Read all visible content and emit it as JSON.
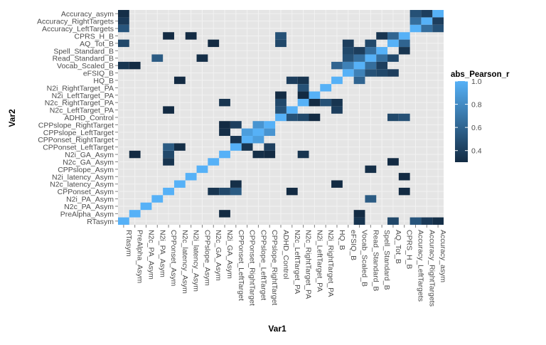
{
  "chart_data": {
    "type": "heatmap",
    "title": "",
    "xlabel": "Var1",
    "ylabel": "Var2",
    "legend": {
      "title": "abs_Pearson_r",
      "ticks": [
        0.4,
        0.6,
        0.8,
        1.0
      ],
      "tick_labels": [
        "0.4",
        "0.6",
        "0.8",
        "1.0"
      ],
      "position": "right",
      "range": [
        0.3,
        1.0
      ]
    },
    "grid": true,
    "colors": {
      "panel": "#e5e5e5",
      "grid": "#f2f2f2",
      "low": "#132b43",
      "high": "#56b1f7",
      "axis_text": "#4d4d4d"
    },
    "variables": [
      "RTasym",
      "PreAlpha_Asym",
      "N2c_PA_Asym",
      "N2i_PA_Asym",
      "CPPonset_Asym",
      "N2c_latency_Asym",
      "N2i_latency_Asym",
      "CPPslope_Asym",
      "N2c_GA_Asym",
      "N2i_GA_Asym",
      "CPPonset_LeftTarget",
      "CPPonset_RightTarget",
      "CPPslope_LeftTarget",
      "CPPslope_RightTarget",
      "ADHD_Control",
      "N2c_LeftTarget_PA",
      "N2c_RightTarget_PA",
      "N2i_LeftTarget_PA",
      "N2i_RightTarget_PA",
      "HQ_B",
      "eFSIQ_B",
      "Vocab_Scaled_B",
      "Read_Standard_B",
      "Spell_Standard_B",
      "AQ_Tot_B",
      "CPRS_H_B",
      "Accuracy_LeftTargets",
      "Accuracy_RightTargets",
      "Accuracy_asym"
    ],
    "cells": [
      [
        0,
        0,
        1.0
      ],
      [
        1,
        1,
        1.0
      ],
      [
        2,
        2,
        1.0
      ],
      [
        3,
        3,
        1.0
      ],
      [
        4,
        4,
        1.0
      ],
      [
        5,
        5,
        1.0
      ],
      [
        6,
        6,
        1.0
      ],
      [
        7,
        7,
        1.0
      ],
      [
        8,
        8,
        1.0
      ],
      [
        9,
        9,
        1.0
      ],
      [
        10,
        10,
        1.0
      ],
      [
        11,
        11,
        1.0
      ],
      [
        12,
        12,
        1.0
      ],
      [
        13,
        13,
        1.0
      ],
      [
        14,
        14,
        1.0
      ],
      [
        15,
        15,
        1.0
      ],
      [
        16,
        16,
        1.0
      ],
      [
        17,
        17,
        1.0
      ],
      [
        18,
        18,
        1.0
      ],
      [
        19,
        19,
        1.0
      ],
      [
        20,
        20,
        1.0
      ],
      [
        21,
        21,
        1.0
      ],
      [
        22,
        22,
        1.0
      ],
      [
        23,
        23,
        1.0
      ],
      [
        24,
        24,
        1.0
      ],
      [
        25,
        25,
        1.0
      ],
      [
        26,
        26,
        1.0
      ],
      [
        27,
        27,
        1.0
      ],
      [
        28,
        28,
        1.0
      ],
      [
        0,
        27,
        0.38
      ],
      [
        27,
        0,
        0.38
      ],
      [
        0,
        26,
        0.52
      ],
      [
        26,
        0,
        0.52
      ],
      [
        0,
        28,
        0.32
      ],
      [
        28,
        0,
        0.32
      ],
      [
        0,
        24,
        0.45
      ],
      [
        24,
        0,
        0.45
      ],
      [
        0,
        21,
        0.35
      ],
      [
        21,
        0,
        0.35
      ],
      [
        3,
        22,
        0.55
      ],
      [
        22,
        3,
        0.55
      ],
      [
        5,
        10,
        0.32
      ],
      [
        10,
        5,
        0.32
      ],
      [
        4,
        15,
        0.3
      ],
      [
        15,
        4,
        0.3
      ],
      [
        1,
        21,
        0.3
      ],
      [
        21,
        1,
        0.3
      ],
      [
        1,
        9,
        0.3
      ],
      [
        9,
        1,
        0.3
      ],
      [
        4,
        9,
        0.45
      ],
      [
        9,
        4,
        0.45
      ],
      [
        5,
        19,
        0.28
      ],
      [
        19,
        5,
        0.28
      ],
      [
        4,
        10,
        0.55
      ],
      [
        10,
        4,
        0.55
      ],
      [
        4,
        8,
        0.35
      ],
      [
        8,
        4,
        0.35
      ],
      [
        4,
        25,
        0.3
      ],
      [
        25,
        4,
        0.3
      ],
      [
        6,
        25,
        0.3
      ],
      [
        25,
        6,
        0.3
      ],
      [
        7,
        22,
        0.32
      ],
      [
        22,
        7,
        0.32
      ],
      [
        8,
        24,
        0.3
      ],
      [
        24,
        8,
        0.3
      ],
      [
        10,
        13,
        0.4
      ],
      [
        13,
        10,
        0.4
      ],
      [
        12,
        9,
        0.32
      ],
      [
        9,
        12,
        0.32
      ],
      [
        13,
        9,
        0.3
      ],
      [
        9,
        13,
        0.3
      ],
      [
        16,
        9,
        0.35
      ],
      [
        9,
        16,
        0.35
      ],
      [
        14,
        15,
        0.5
      ],
      [
        15,
        14,
        0.5
      ],
      [
        14,
        16,
        0.45
      ],
      [
        16,
        14,
        0.45
      ],
      [
        14,
        17,
        0.3
      ],
      [
        17,
        14,
        0.3
      ],
      [
        15,
        19,
        0.4
      ],
      [
        19,
        15,
        0.4
      ],
      [
        16,
        19,
        0.35
      ],
      [
        19,
        16,
        0.35
      ],
      [
        16,
        17,
        0.3
      ],
      [
        17,
        16,
        0.3
      ],
      [
        16,
        18,
        0.5
      ],
      [
        18,
        16,
        0.5
      ],
      [
        12,
        13,
        0.85
      ],
      [
        13,
        12,
        0.85
      ],
      [
        11,
        12,
        0.9
      ],
      [
        12,
        11,
        0.9
      ],
      [
        10,
        11,
        0.35
      ],
      [
        11,
        10,
        0.35
      ],
      [
        19,
        21,
        0.6
      ],
      [
        21,
        19,
        0.6
      ],
      [
        20,
        21,
        0.75
      ],
      [
        21,
        20,
        0.75
      ],
      [
        20,
        22,
        0.5
      ],
      [
        22,
        20,
        0.5
      ],
      [
        21,
        22,
        0.65
      ],
      [
        22,
        21,
        0.65
      ],
      [
        22,
        23,
        0.65
      ],
      [
        23,
        22,
        0.65
      ],
      [
        20,
        23,
        0.45
      ],
      [
        23,
        20,
        0.45
      ],
      [
        21,
        23,
        0.4
      ],
      [
        23,
        21,
        0.4
      ],
      [
        20,
        24,
        0.4
      ],
      [
        24,
        20,
        0.4
      ],
      [
        22,
        24,
        0.45
      ],
      [
        24,
        22,
        0.45
      ],
      [
        24,
        25,
        0.6
      ],
      [
        25,
        24,
        0.6
      ],
      [
        23,
        25,
        0.35
      ],
      [
        25,
        23,
        0.35
      ],
      [
        26,
        27,
        0.65
      ],
      [
        27,
        26,
        0.65
      ],
      [
        27,
        28,
        0.4
      ],
      [
        28,
        27,
        0.4
      ],
      [
        26,
        28,
        0.5
      ],
      [
        28,
        26,
        0.5
      ],
      [
        14,
        25,
        0.5
      ],
      [
        25,
        14,
        0.5
      ],
      [
        14,
        24,
        0.45
      ],
      [
        24,
        14,
        0.45
      ]
    ]
  }
}
